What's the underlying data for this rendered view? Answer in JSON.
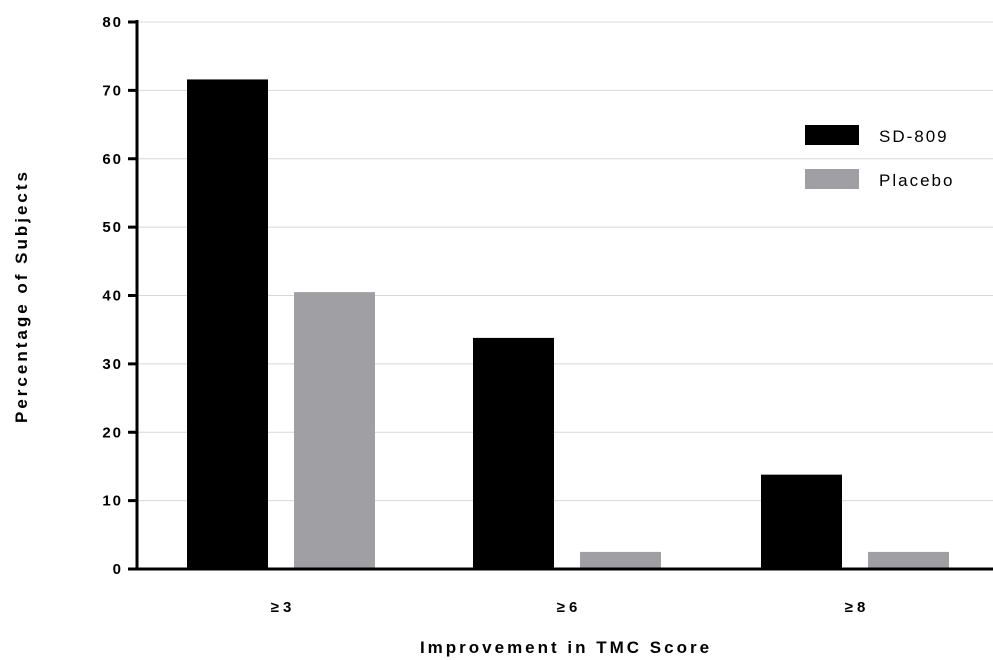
{
  "chart_data": {
    "type": "bar",
    "title": "",
    "xlabel": "Improvement in TMC Score",
    "ylabel": "Percentage of Subjects",
    "categories": [
      "≥ 3",
      "≥ 6",
      "≥ 8"
    ],
    "series": [
      {
        "name": "SD-809",
        "values": [
          71.6,
          33.8,
          13.8
        ],
        "color": "#000000"
      },
      {
        "name": "Placebo",
        "values": [
          40.5,
          2.5,
          2.5
        ],
        "color": "#a0a0a4"
      }
    ],
    "ylim": [
      0,
      80
    ],
    "yticks": [
      "0",
      "10",
      "20",
      "30",
      "40",
      "50",
      "60",
      "70",
      "80"
    ],
    "grid": true,
    "legend_position": "top-right"
  }
}
